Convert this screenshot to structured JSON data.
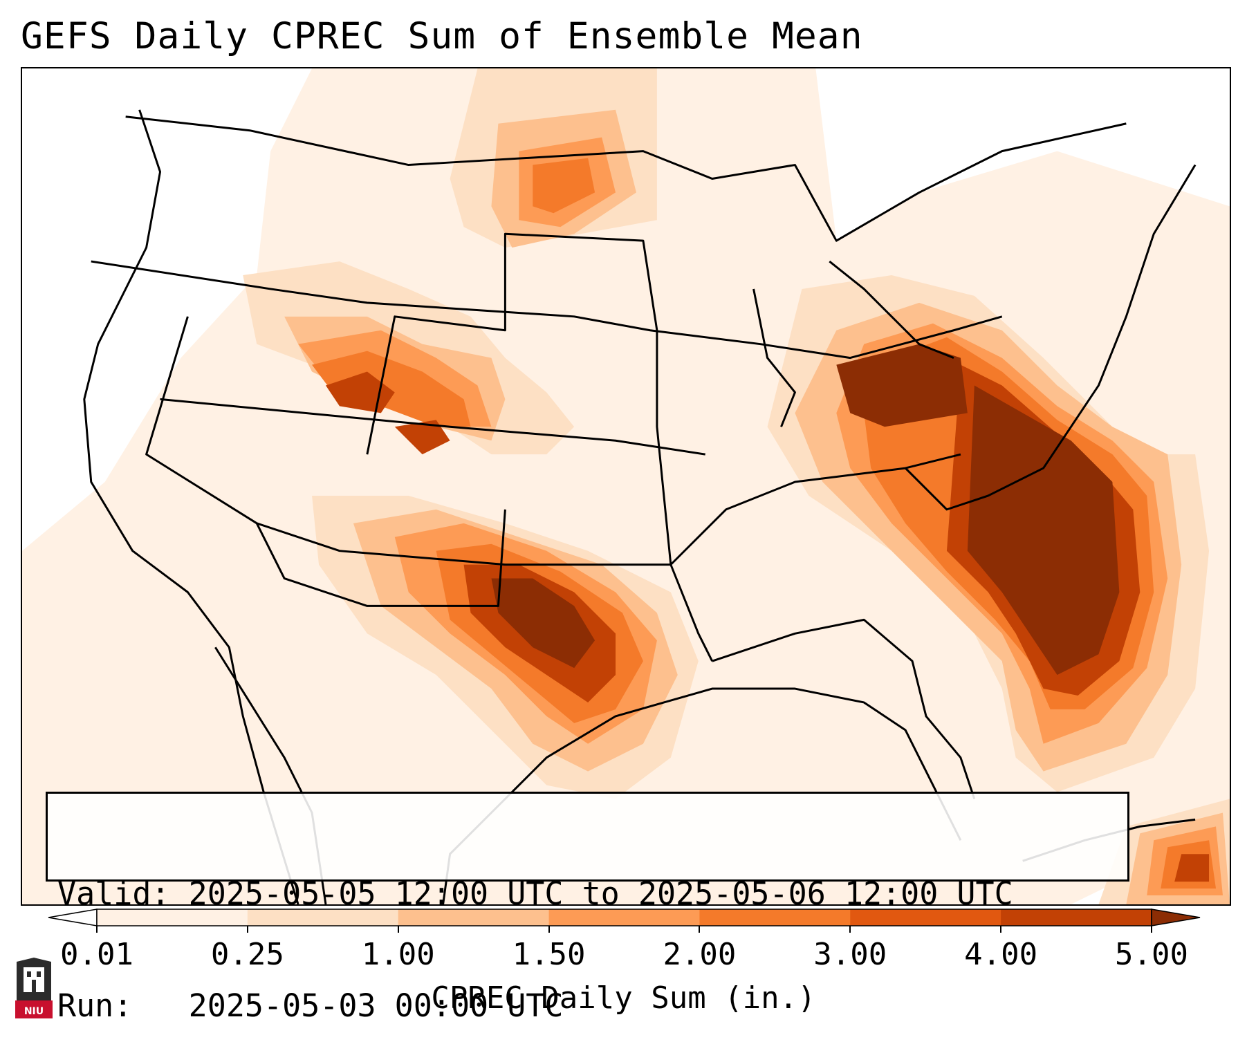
{
  "header": {
    "title": "GEFS Daily CPREC Sum of Ensemble Mean"
  },
  "info": {
    "valid_line": "Valid: 2025-05-05 12:00 UTC to 2025-05-06 12:00 UTC",
    "run_line": "Run:   2025-05-03 00:00 UTC"
  },
  "colorbar": {
    "label": "CPREC Daily Sum (in.)",
    "ticks": [
      "0.01",
      "0.25",
      "1.00",
      "1.50",
      "2.00",
      "3.00",
      "4.00",
      "5.00"
    ],
    "colors": [
      "#fff1e4",
      "#fde0c4",
      "#fdc08e",
      "#fd9b55",
      "#f47a2a",
      "#e15810",
      "#c24105",
      "#8c2d04"
    ],
    "extend": "both"
  },
  "logo": {
    "text": "NIU"
  }
}
